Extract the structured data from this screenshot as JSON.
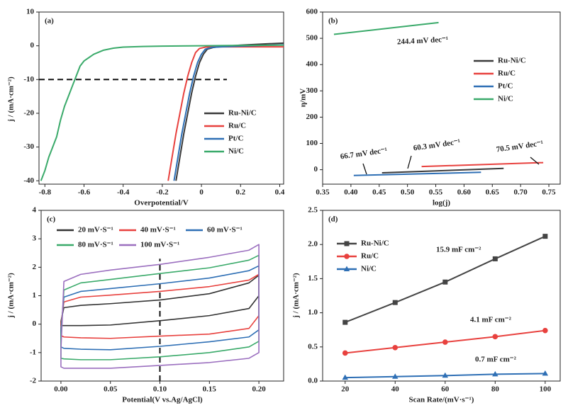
{
  "chart_data": [
    {
      "type": "line",
      "label": "(a)",
      "xlabel": "Overpotential/V",
      "ylabel": "j / (mA·cm⁻²)",
      "xlim": [
        -0.83,
        0.42
      ],
      "ylim": [
        -41,
        10
      ],
      "xticks": [
        -0.8,
        -0.6,
        -0.4,
        -0.2,
        0,
        0.2,
        0.4
      ],
      "yticks": [
        10,
        0,
        -10,
        -20,
        -30,
        -40
      ],
      "legend": "lower right",
      "hline": {
        "y": -10,
        "xmax": 0.13
      },
      "series": [
        {
          "name": "Ru-Ni/C",
          "color": "#3a3a3a",
          "x": [
            -0.13,
            -0.11,
            -0.09,
            -0.07,
            -0.05,
            -0.03,
            -0.01,
            0.01,
            0.03,
            0.06,
            0.1,
            0.2,
            0.42
          ],
          "values": [
            -40,
            -33,
            -26,
            -20,
            -14,
            -9,
            -5,
            -2.5,
            -1,
            -0.5,
            -0.2,
            0.2,
            0.8
          ]
        },
        {
          "name": "Ru/C",
          "color": "#e8413e",
          "x": [
            -0.17,
            -0.15,
            -0.13,
            -0.11,
            -0.09,
            -0.07,
            -0.05,
            -0.03,
            -0.01,
            0.02,
            0.1,
            0.2,
            0.42
          ],
          "values": [
            -40,
            -33,
            -26,
            -20,
            -14,
            -9,
            -5,
            -2,
            -0.8,
            -0.4,
            -0.3,
            -0.3,
            -0.3
          ]
        },
        {
          "name": "Pt/C",
          "color": "#2e6fb5",
          "x": [
            -0.14,
            -0.12,
            -0.1,
            -0.08,
            -0.06,
            -0.04,
            -0.02,
            0,
            0.02,
            0.05,
            0.1,
            0.2,
            0.42
          ],
          "values": [
            -40,
            -33,
            -26,
            -20,
            -14,
            -9,
            -5,
            -2.5,
            -1,
            -0.5,
            -0.3,
            -0.1,
            0.3
          ]
        },
        {
          "name": "Ni/C",
          "color": "#3aaa6a",
          "x": [
            -0.82,
            -0.8,
            -0.78,
            -0.76,
            -0.74,
            -0.72,
            -0.7,
            -0.68,
            -0.66,
            -0.64,
            -0.62,
            -0.6,
            -0.55,
            -0.5,
            -0.45,
            -0.4,
            -0.3,
            -0.2,
            0,
            0.2,
            0.42
          ],
          "values": [
            -40,
            -37,
            -33,
            -30,
            -27,
            -22,
            -18,
            -15,
            -12,
            -9,
            -6,
            -4.5,
            -2.5,
            -1.3,
            -0.7,
            -0.4,
            -0.2,
            -0.1,
            0,
            0.1,
            0.2
          ]
        }
      ]
    },
    {
      "type": "line",
      "label": "(b)",
      "xlabel": "log(j)",
      "ylabel": "η/mV",
      "xlim": [
        0.35,
        0.77
      ],
      "ylim": [
        -55,
        600
      ],
      "xticks": [
        {
          "value": 0.35,
          "label": "0.35"
        },
        {
          "value": 0.4,
          "label": "0.40"
        },
        {
          "value": 0.45,
          "label": "0.45"
        },
        {
          "value": 0.5,
          "label": "0.50"
        },
        {
          "value": 0.55,
          "label": "0.55"
        },
        {
          "value": 0.6,
          "label": "0.60"
        },
        {
          "value": 0.65,
          "label": "0.65"
        },
        {
          "value": 0.7,
          "label": "0.70"
        },
        {
          "value": 0.75,
          "label": "0.75"
        }
      ],
      "yticks": [
        0,
        100,
        200,
        300,
        400,
        500,
        600
      ],
      "legend": "center right",
      "annotations": [
        "244.4 mV dec⁻¹",
        "66.7 mV dec⁻¹",
        "60.3 mV dec⁻¹",
        "70.5 mV dec⁻¹"
      ],
      "series": [
        {
          "name": "Ru-Ni/C",
          "color": "#3a3a3a",
          "x": [
            0.455,
            0.67
          ],
          "values": [
            -12,
            5
          ]
        },
        {
          "name": "Ru/C",
          "color": "#e8413e",
          "x": [
            0.525,
            0.74
          ],
          "values": [
            12,
            27
          ]
        },
        {
          "name": "Pt/C",
          "color": "#2e6fb5",
          "x": [
            0.405,
            0.63
          ],
          "values": [
            -22,
            -10
          ]
        },
        {
          "name": "Ni/C",
          "color": "#3aaa6a",
          "x": [
            0.37,
            0.555
          ],
          "values": [
            515,
            560
          ]
        }
      ]
    },
    {
      "type": "line",
      "label": "(c)",
      "xlabel": "Potential(V vs.Ag/AgCl)",
      "ylabel": "j / (mA·cm⁻²)",
      "xlim": [
        -0.02,
        0.225
      ],
      "ylim": [
        -2,
        4
      ],
      "xticks": [
        {
          "value": 0,
          "label": "0.00"
        },
        {
          "value": 0.05,
          "label": "0.05"
        },
        {
          "value": 0.1,
          "label": "0.10"
        },
        {
          "value": 0.15,
          "label": "0.15"
        },
        {
          "value": 0.2,
          "label": "0.20"
        }
      ],
      "yticks": [
        -2,
        -1,
        0,
        1,
        2,
        3,
        4
      ],
      "legend": "upper left",
      "vline": {
        "x": 0.1,
        "ymax": 2.3
      },
      "series": [
        {
          "name": "20 mV·S⁻¹",
          "color": "#333333",
          "x": [
            0,
            0.003,
            0.02,
            0.05,
            0.1,
            0.15,
            0.19,
            0.2,
            0.2,
            0.19,
            0.15,
            0.1,
            0.05,
            0.02,
            0.003,
            0,
            0
          ],
          "values": [
            0.1,
            0.58,
            0.66,
            0.72,
            0.85,
            1.07,
            1.45,
            1.72,
            1.0,
            0.55,
            0.3,
            0.12,
            -0.03,
            -0.05,
            -0.05,
            -0.05,
            0.1
          ]
        },
        {
          "name": "40 mV·S⁻¹",
          "color": "#e8413e",
          "x": [
            0,
            0.003,
            0.02,
            0.05,
            0.1,
            0.15,
            0.19,
            0.2,
            0.2,
            0.19,
            0.15,
            0.1,
            0.05,
            0.02,
            0.003,
            0,
            0
          ],
          "values": [
            0.0,
            0.78,
            0.95,
            1.02,
            1.15,
            1.32,
            1.55,
            1.75,
            0.3,
            -0.15,
            -0.35,
            -0.42,
            -0.5,
            -0.48,
            -0.45,
            -0.4,
            0.0
          ]
        },
        {
          "name": "60 mV·S⁻¹",
          "color": "#2e6fb5",
          "x": [
            0,
            0.003,
            0.02,
            0.05,
            0.1,
            0.15,
            0.19,
            0.2,
            0.2,
            0.19,
            0.15,
            0.1,
            0.05,
            0.02,
            0.003,
            0,
            0
          ],
          "values": [
            -0.2,
            0.95,
            1.15,
            1.25,
            1.42,
            1.62,
            1.88,
            2.05,
            -0.2,
            -0.45,
            -0.62,
            -0.78,
            -0.9,
            -0.88,
            -0.85,
            -0.8,
            -0.2
          ]
        },
        {
          "name": "80 mV·S⁻¹",
          "color": "#3aaa6a",
          "x": [
            0,
            0.003,
            0.02,
            0.05,
            0.1,
            0.15,
            0.19,
            0.2,
            0.2,
            0.19,
            0.15,
            0.1,
            0.05,
            0.02,
            0.003,
            0,
            0
          ],
          "values": [
            -0.5,
            1.2,
            1.45,
            1.57,
            1.78,
            1.98,
            2.25,
            2.42,
            -0.6,
            -0.8,
            -1.0,
            -1.15,
            -1.25,
            -1.25,
            -1.22,
            -1.2,
            -0.5
          ]
        },
        {
          "name": "100 mV·S⁻¹",
          "color": "#9b6fbf",
          "x": [
            0,
            0.003,
            0.02,
            0.05,
            0.1,
            0.15,
            0.19,
            0.2,
            0.2,
            0.19,
            0.15,
            0.1,
            0.05,
            0.02,
            0.003,
            0,
            0
          ],
          "values": [
            -0.9,
            1.5,
            1.75,
            1.9,
            2.1,
            2.35,
            2.6,
            2.8,
            -1.0,
            -1.2,
            -1.35,
            -1.45,
            -1.55,
            -1.55,
            -1.55,
            -1.5,
            -0.9
          ]
        }
      ]
    },
    {
      "type": "line",
      "label": "(d)",
      "xlabel": "Scan Rate/(mV·s⁻¹)",
      "ylabel": "j / (mA·cm⁻²)",
      "xlim": [
        11,
        106
      ],
      "ylim": [
        0,
        2.5
      ],
      "xticks": [
        20,
        40,
        60,
        80,
        100
      ],
      "yticks": [
        {
          "value": 0,
          "label": "0.0"
        },
        {
          "value": 0.5,
          "label": "0.5"
        },
        {
          "value": 1,
          "label": "1.0"
        },
        {
          "value": 1.5,
          "label": "1.5"
        },
        {
          "value": 2,
          "label": "2.0"
        },
        {
          "value": 2.5,
          "label": "2.5"
        }
      ],
      "legend": "upper left",
      "annotations": [
        "15.9 mF cm⁻²",
        "4.1 mF cm⁻²",
        "0.7 mF cm⁻²"
      ],
      "series": [
        {
          "name": "Ru-Ni/C",
          "color": "#444444",
          "marker": "square",
          "x": [
            20,
            40,
            60,
            80,
            100
          ],
          "values": [
            0.86,
            1.15,
            1.45,
            1.79,
            2.12
          ]
        },
        {
          "name": "Ru/C",
          "color": "#e8413e",
          "marker": "circle",
          "x": [
            20,
            40,
            60,
            80,
            100
          ],
          "values": [
            0.41,
            0.49,
            0.57,
            0.65,
            0.74
          ]
        },
        {
          "name": "Ni/C",
          "color": "#2e6fb5",
          "marker": "triangle",
          "x": [
            20,
            40,
            60,
            80,
            100
          ],
          "values": [
            0.05,
            0.065,
            0.08,
            0.1,
            0.11
          ]
        }
      ]
    }
  ]
}
